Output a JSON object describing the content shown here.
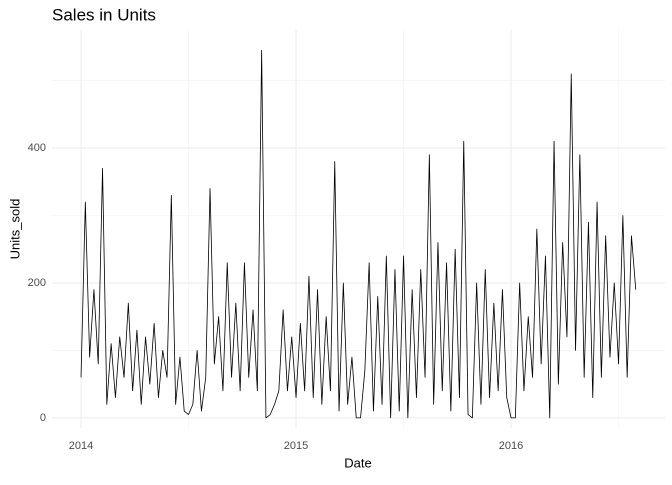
{
  "chart_data": {
    "type": "line",
    "title": "Sales in Units",
    "x_label": "Date",
    "y_label": "Units_sold",
    "x": [
      2014,
      2014.02,
      2014.04,
      2014.06,
      2014.08,
      2014.1,
      2014.12,
      2014.14,
      2014.16,
      2014.18,
      2014.2,
      2014.22,
      2014.24,
      2014.26,
      2014.28,
      2014.3,
      2014.32,
      2014.34,
      2014.36,
      2014.38,
      2014.4,
      2014.42,
      2014.44,
      2014.46,
      2014.48,
      2014.5,
      2014.52,
      2014.54,
      2014.56,
      2014.58,
      2014.6,
      2014.62,
      2014.64,
      2014.66,
      2014.68,
      2014.7,
      2014.72,
      2014.74,
      2014.76,
      2014.78,
      2014.8,
      2014.82,
      2014.84,
      2014.86,
      2014.88,
      2014.9,
      2014.92,
      2014.94,
      2014.96,
      2014.98,
      2015,
      2015.02,
      2015.04,
      2015.06,
      2015.08,
      2015.1,
      2015.12,
      2015.14,
      2015.16,
      2015.18,
      2015.2,
      2015.22,
      2015.24,
      2015.26,
      2015.28,
      2015.3,
      2015.32,
      2015.34,
      2015.36,
      2015.38,
      2015.4,
      2015.42,
      2015.44,
      2015.46,
      2015.48,
      2015.5,
      2015.52,
      2015.54,
      2015.56,
      2015.58,
      2015.6,
      2015.62,
      2015.64,
      2015.66,
      2015.68,
      2015.7,
      2015.72,
      2015.74,
      2015.76,
      2015.78,
      2015.8,
      2015.82,
      2015.84,
      2015.86,
      2015.88,
      2015.9,
      2015.92,
      2015.94,
      2015.96,
      2015.98,
      2016,
      2016.02,
      2016.04,
      2016.06,
      2016.08,
      2016.1,
      2016.12,
      2016.14,
      2016.16,
      2016.18,
      2016.2,
      2016.22,
      2016.24,
      2016.26,
      2016.28,
      2016.3,
      2016.32,
      2016.34,
      2016.36,
      2016.38,
      2016.4,
      2016.42,
      2016.44,
      2016.46,
      2016.48,
      2016.5,
      2016.52,
      2016.54,
      2016.56,
      2016.58
    ],
    "values": [
      60,
      320,
      90,
      190,
      80,
      370,
      20,
      110,
      30,
      120,
      60,
      170,
      40,
      130,
      20,
      120,
      50,
      140,
      30,
      100,
      60,
      330,
      20,
      90,
      10,
      5,
      20,
      100,
      10,
      60,
      340,
      80,
      150,
      40,
      230,
      60,
      170,
      40,
      230,
      60,
      160,
      40,
      545,
      0,
      5,
      20,
      40,
      160,
      40,
      120,
      30,
      140,
      40,
      210,
      30,
      190,
      20,
      150,
      40,
      380,
      10,
      200,
      20,
      90,
      0,
      0,
      70,
      230,
      10,
      180,
      20,
      240,
      0,
      220,
      10,
      240,
      0,
      190,
      30,
      220,
      60,
      390,
      20,
      260,
      40,
      230,
      10,
      250,
      30,
      410,
      5,
      0,
      200,
      20,
      220,
      30,
      170,
      40,
      190,
      30,
      0,
      0,
      200,
      40,
      150,
      60,
      280,
      80,
      240,
      0,
      410,
      50,
      260,
      120,
      510,
      100,
      390,
      60,
      290,
      30,
      320,
      60,
      270,
      90,
      200,
      80,
      300,
      60,
      270,
      190
    ],
    "color": "#000000",
    "xlim": [
      2013.865,
      2016.716
    ],
    "xticks": [
      2014,
      2015,
      2016
    ],
    "x_minor_gridlines": [
      2014.5,
      2015.5,
      2016.5
    ],
    "ylim": [
      -15,
      575
    ],
    "yticks": [
      0,
      200,
      400
    ],
    "y_minor_gridlines": [
      100,
      300,
      500
    ],
    "grid": true
  }
}
